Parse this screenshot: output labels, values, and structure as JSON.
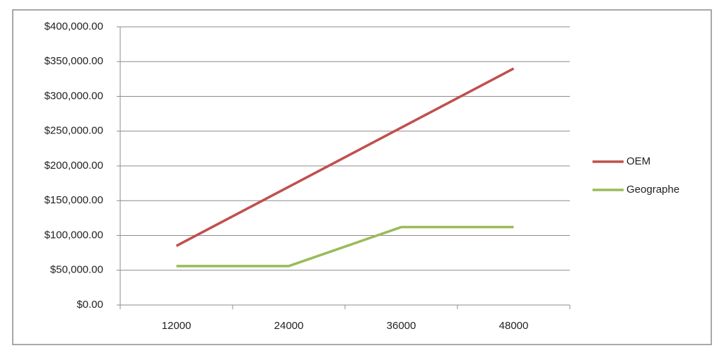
{
  "chart_data": {
    "type": "line",
    "categories": [
      "12000",
      "24000",
      "36000",
      "48000"
    ],
    "series": [
      {
        "name": "OEM",
        "color": "#c0504d",
        "values": [
          85000,
          170000,
          255000,
          340000
        ]
      },
      {
        "name": "Geographe",
        "color": "#9bbb59",
        "values": [
          56000,
          56000,
          112000,
          112000
        ]
      }
    ],
    "ylim": [
      0,
      400000
    ],
    "yticks": [
      {
        "value": 0,
        "label": "$0.00"
      },
      {
        "value": 50000,
        "label": "$50,000.00"
      },
      {
        "value": 100000,
        "label": "$100,000.00"
      },
      {
        "value": 150000,
        "label": "$150,000.00"
      },
      {
        "value": 200000,
        "label": "$200,000.00"
      },
      {
        "value": 250000,
        "label": "$250,000.00"
      },
      {
        "value": 300000,
        "label": "$300,000.00"
      },
      {
        "value": 350000,
        "label": "$350,000.00"
      },
      {
        "value": 400000,
        "label": "$400,000.00"
      }
    ],
    "grid": true,
    "legend": "right"
  }
}
